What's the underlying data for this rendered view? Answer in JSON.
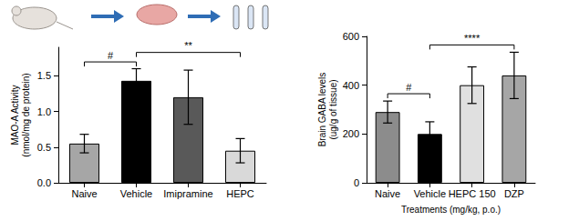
{
  "chart_data": [
    {
      "type": "bar",
      "categories": [
        "Naive",
        "Vehicle",
        "Imipramine",
        "HEPC"
      ],
      "values": [
        0.55,
        1.43,
        1.2,
        0.45
      ],
      "errors": [
        0.13,
        0.17,
        0.38,
        0.17
      ],
      "colors": [
        "#a6a6a6",
        "#000000",
        "#595959",
        "#d9d9d9"
      ],
      "y_label": "MAO-A Activity\n(nmol/mg de protein)",
      "ylim": [
        0,
        1.9
      ],
      "yticks": [
        {
          "value": 0,
          "label": "0.0"
        },
        {
          "value": 0.5,
          "label": "0.5"
        },
        {
          "value": 1,
          "label": "1.0"
        },
        {
          "value": 1.5,
          "label": "1.5"
        }
      ],
      "annotations": [
        {
          "text": "#",
          "from": "Naive",
          "to": "Vehicle"
        },
        {
          "text": "**",
          "from": "Vehicle",
          "to": "HEPC"
        }
      ]
    },
    {
      "type": "bar",
      "categories": [
        "Naive",
        "Vehicle",
        "HEPC 150",
        "DZP"
      ],
      "values": [
        290,
        200,
        400,
        440
      ],
      "errors": [
        45,
        50,
        75,
        95
      ],
      "colors": [
        "#8c8c8c",
        "#000000",
        "#e0e0e0",
        "#a6a6a6"
      ],
      "x_label": "Treatments (mg/kg, p.o.)",
      "y_label": "Brain GABA levels\n(ug/g of tissue)",
      "ylim": [
        0,
        600
      ],
      "yticks": [
        0,
        200,
        400,
        600
      ],
      "annotations": [
        {
          "text": "#",
          "from": "Naive",
          "to": "Vehicle"
        },
        {
          "text": "****",
          "from": "Vehicle",
          "to": "DZP"
        }
      ]
    }
  ]
}
